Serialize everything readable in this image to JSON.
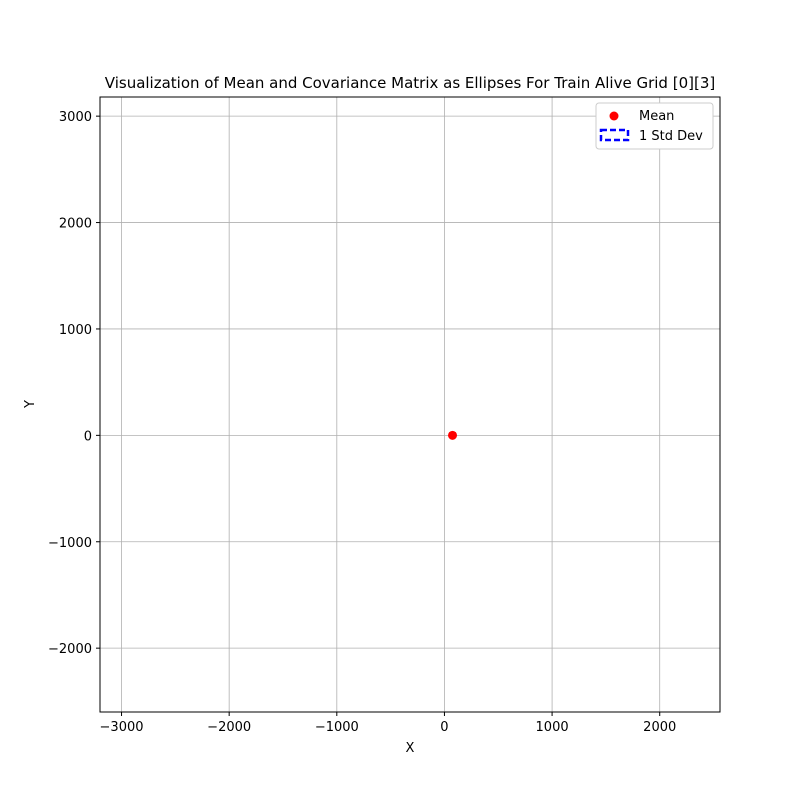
{
  "chart_data": {
    "type": "scatter",
    "title": "Visualization of Mean and Covariance Matrix as Ellipses For Train Alive Grid [0][3]",
    "xlabel": "X",
    "ylabel": "Y",
    "xlim": [
      -3200,
      2560
    ],
    "ylim": [
      -2600,
      3180
    ],
    "xticks": [
      -3000,
      -2000,
      -1000,
      0,
      1000,
      2000
    ],
    "yticks": [
      -2000,
      -1000,
      0,
      1000,
      2000,
      3000
    ],
    "xtick_labels": [
      "−3000",
      "−2000",
      "−1000",
      "0",
      "1000",
      "2000"
    ],
    "ytick_labels": [
      "−2000",
      "−1000",
      "0",
      "1000",
      "2000",
      "3000"
    ],
    "grid": true,
    "legend_position": "top-right",
    "series": [
      {
        "name": "Mean",
        "kind": "point",
        "color": "#ff0000",
        "points": [
          {
            "x": 75,
            "y": 0
          }
        ]
      },
      {
        "name": "1 Std Dev",
        "kind": "ellipse",
        "color": "#0000ff",
        "style": "dashed"
      }
    ]
  }
}
